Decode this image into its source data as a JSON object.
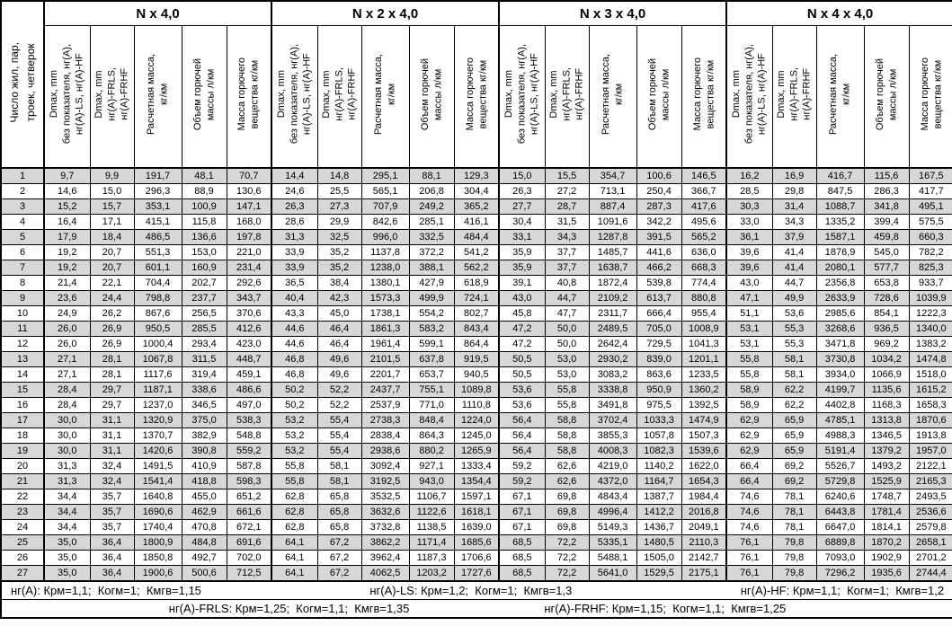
{
  "table": {
    "corner_header": "Число жил, пар,\nтроек, четверок",
    "groups": [
      {
        "title": "N x 4,0"
      },
      {
        "title": "N x 2 x 4,0"
      },
      {
        "title": "N x 3 x 4,0"
      },
      {
        "title": "N x 4 x 4,0"
      }
    ],
    "subheaders": [
      "Dmax, mm\nбез показателя, нг(А),\nнг(А)-LS, нг(А)-HF",
      "Dmax, mm\nнг(А)-FRLS,\nнг(А)-FRHF",
      "Расчетная масса,\nкг/км",
      "Объем горючей\nмассы л/км",
      "Масса горючего\nвещества кг/км"
    ],
    "rows": [
      {
        "n": "1",
        "cells": [
          "9,7",
          "9,9",
          "191,7",
          "48,1",
          "70,7",
          "14,4",
          "14,8",
          "295,1",
          "88,1",
          "129,3",
          "15,0",
          "15,5",
          "354,7",
          "100,6",
          "146,5",
          "16,2",
          "16,9",
          "416,7",
          "115,6",
          "167,5"
        ]
      },
      {
        "n": "2",
        "cells": [
          "14,6",
          "15,0",
          "296,3",
          "88,9",
          "130,6",
          "24,6",
          "25,5",
          "565,1",
          "206,8",
          "304,4",
          "26,3",
          "27,2",
          "713,1",
          "250,4",
          "366,7",
          "28,5",
          "29,8",
          "847,5",
          "286,3",
          "417,7"
        ]
      },
      {
        "n": "3",
        "cells": [
          "15,2",
          "15,7",
          "353,1",
          "100,9",
          "147,1",
          "26,3",
          "27,3",
          "707,9",
          "249,2",
          "365,2",
          "27,7",
          "28,7",
          "887,4",
          "287,3",
          "417,6",
          "30,3",
          "31,4",
          "1088,7",
          "341,8",
          "495,1"
        ]
      },
      {
        "n": "4",
        "cells": [
          "16,4",
          "17,1",
          "415,1",
          "115,8",
          "168,0",
          "28,6",
          "29,9",
          "842,6",
          "285,1",
          "416,1",
          "30,4",
          "31,5",
          "1091,6",
          "342,2",
          "495,6",
          "33,0",
          "34,3",
          "1335,2",
          "399,4",
          "575,5"
        ]
      },
      {
        "n": "5",
        "cells": [
          "17,9",
          "18,4",
          "486,5",
          "136,6",
          "197,8",
          "31,3",
          "32,5",
          "996,0",
          "332,5",
          "484,4",
          "33,1",
          "34,3",
          "1287,8",
          "391,5",
          "565,2",
          "36,1",
          "37,9",
          "1587,1",
          "459,8",
          "660,3"
        ]
      },
      {
        "n": "6",
        "cells": [
          "19,2",
          "20,7",
          "551,3",
          "153,0",
          "221,0",
          "33,9",
          "35,2",
          "1137,8",
          "372,2",
          "541,2",
          "35,9",
          "37,7",
          "1485,7",
          "441,6",
          "636,0",
          "39,6",
          "41,4",
          "1876,9",
          "545,0",
          "782,2"
        ]
      },
      {
        "n": "7",
        "cells": [
          "19,2",
          "20,7",
          "601,1",
          "160,9",
          "231,4",
          "33,9",
          "35,2",
          "1238,0",
          "388,1",
          "562,2",
          "35,9",
          "37,7",
          "1638,7",
          "466,2",
          "668,3",
          "39,6",
          "41,4",
          "2080,1",
          "577,7",
          "825,3"
        ]
      },
      {
        "n": "8",
        "cells": [
          "21,4",
          "22,1",
          "704,4",
          "202,7",
          "292,6",
          "36,5",
          "38,4",
          "1380,1",
          "427,9",
          "618,9",
          "39,1",
          "40,8",
          "1872,4",
          "539,8",
          "774,4",
          "43,0",
          "44,7",
          "2356,8",
          "653,8",
          "933,7"
        ]
      },
      {
        "n": "9",
        "cells": [
          "23,6",
          "24,4",
          "798,8",
          "237,7",
          "343,7",
          "40,4",
          "42,3",
          "1573,3",
          "499,9",
          "724,1",
          "43,0",
          "44,7",
          "2109,2",
          "613,7",
          "880,8",
          "47,1",
          "49,9",
          "2633,9",
          "728,6",
          "1039,9"
        ]
      },
      {
        "n": "10",
        "cells": [
          "24,9",
          "26,2",
          "867,6",
          "256,5",
          "370,6",
          "43,3",
          "45,0",
          "1738,1",
          "554,2",
          "802,7",
          "45,8",
          "47,7",
          "2311,7",
          "666,4",
          "955,4",
          "51,1",
          "53,6",
          "2985,6",
          "854,1",
          "1222,3"
        ]
      },
      {
        "n": "11",
        "cells": [
          "26,0",
          "26,9",
          "950,5",
          "285,5",
          "412,6",
          "44,6",
          "46,4",
          "1861,3",
          "583,2",
          "843,4",
          "47,2",
          "50,0",
          "2489,5",
          "705,0",
          "1008,9",
          "53,1",
          "55,3",
          "3268,6",
          "936,5",
          "1340,0"
        ]
      },
      {
        "n": "12",
        "cells": [
          "26,0",
          "26,9",
          "1000,4",
          "293,4",
          "423,0",
          "44,6",
          "46,4",
          "1961,4",
          "599,1",
          "864,4",
          "47,2",
          "50,0",
          "2642,4",
          "729,5",
          "1041,3",
          "53,1",
          "55,3",
          "3471,8",
          "969,2",
          "1383,2"
        ]
      },
      {
        "n": "13",
        "cells": [
          "27,1",
          "28,1",
          "1067,8",
          "311,5",
          "448,7",
          "46,8",
          "49,6",
          "2101,5",
          "637,8",
          "919,5",
          "50,5",
          "53,0",
          "2930,2",
          "839,0",
          "1201,1",
          "55,8",
          "58,1",
          "3730,8",
          "1034,2",
          "1474,8"
        ]
      },
      {
        "n": "14",
        "cells": [
          "27,1",
          "28,1",
          "1117,6",
          "319,4",
          "459,1",
          "46,8",
          "49,6",
          "2201,7",
          "653,7",
          "940,5",
          "50,5",
          "53,0",
          "3083,2",
          "863,6",
          "1233,5",
          "55,8",
          "58,1",
          "3934,0",
          "1066,9",
          "1518,0"
        ]
      },
      {
        "n": "15",
        "cells": [
          "28,4",
          "29,7",
          "1187,1",
          "338,6",
          "486,6",
          "50,2",
          "52,2",
          "2437,7",
          "755,1",
          "1089,8",
          "53,6",
          "55,8",
          "3338,8",
          "950,9",
          "1360,2",
          "58,9",
          "62,2",
          "4199,7",
          "1135,6",
          "1615,2"
        ]
      },
      {
        "n": "16",
        "cells": [
          "28,4",
          "29,7",
          "1237,0",
          "346,5",
          "497,0",
          "50,2",
          "52,2",
          "2537,9",
          "771,0",
          "1110,8",
          "53,6",
          "55,8",
          "3491,8",
          "975,5",
          "1392,5",
          "58,9",
          "62,2",
          "4402,8",
          "1168,3",
          "1658,3"
        ]
      },
      {
        "n": "17",
        "cells": [
          "30,0",
          "31,1",
          "1320,9",
          "375,0",
          "538,3",
          "53,2",
          "55,4",
          "2738,3",
          "848,4",
          "1224,0",
          "56,4",
          "58,8",
          "3702,4",
          "1033,3",
          "1474,9",
          "62,9",
          "65,9",
          "4785,1",
          "1313,8",
          "1870,6"
        ]
      },
      {
        "n": "18",
        "cells": [
          "30,0",
          "31,1",
          "1370,7",
          "382,9",
          "548,8",
          "53,2",
          "55,4",
          "2838,4",
          "864,3",
          "1245,0",
          "56,4",
          "58,8",
          "3855,3",
          "1057,8",
          "1507,3",
          "62,9",
          "65,9",
          "4988,3",
          "1346,5",
          "1913,8"
        ]
      },
      {
        "n": "19",
        "cells": [
          "30,0",
          "31,1",
          "1420,6",
          "390,8",
          "559,2",
          "53,2",
          "55,4",
          "2938,6",
          "880,2",
          "1265,9",
          "56,4",
          "58,8",
          "4008,3",
          "1082,3",
          "1539,6",
          "62,9",
          "65,9",
          "5191,4",
          "1379,2",
          "1957,0"
        ]
      },
      {
        "n": "20",
        "cells": [
          "31,3",
          "32,4",
          "1491,5",
          "410,9",
          "587,8",
          "55,8",
          "58,1",
          "3092,4",
          "927,1",
          "1333,4",
          "59,2",
          "62,6",
          "4219,0",
          "1140,2",
          "1622,0",
          "66,4",
          "69,2",
          "5526,7",
          "1493,2",
          "2122,1"
        ]
      },
      {
        "n": "21",
        "cells": [
          "31,3",
          "32,4",
          "1541,4",
          "418,8",
          "598,3",
          "55,8",
          "58,1",
          "3192,5",
          "943,0",
          "1354,4",
          "59,2",
          "62,6",
          "4372,0",
          "1164,7",
          "1654,3",
          "66,4",
          "69,2",
          "5729,8",
          "1525,9",
          "2165,3"
        ]
      },
      {
        "n": "22",
        "cells": [
          "34,4",
          "35,7",
          "1640,8",
          "455,0",
          "651,2",
          "62,8",
          "65,8",
          "3532,5",
          "1106,7",
          "1597,1",
          "67,1",
          "69,8",
          "4843,4",
          "1387,7",
          "1984,4",
          "74,6",
          "78,1",
          "6240,6",
          "1748,7",
          "2493,5"
        ]
      },
      {
        "n": "23",
        "cells": [
          "34,4",
          "35,7",
          "1690,6",
          "462,9",
          "661,6",
          "62,8",
          "65,8",
          "3632,6",
          "1122,6",
          "1618,1",
          "67,1",
          "69,8",
          "4996,4",
          "1412,2",
          "2016,8",
          "74,6",
          "78,1",
          "6443,8",
          "1781,4",
          "2536,6"
        ]
      },
      {
        "n": "24",
        "cells": [
          "34,4",
          "35,7",
          "1740,4",
          "470,8",
          "672,1",
          "62,8",
          "65,8",
          "3732,8",
          "1138,5",
          "1639,0",
          "67,1",
          "69,8",
          "5149,3",
          "1436,7",
          "2049,1",
          "74,6",
          "78,1",
          "6647,0",
          "1814,1",
          "2579,8"
        ]
      },
      {
        "n": "25",
        "cells": [
          "35,0",
          "36,4",
          "1800,9",
          "484,8",
          "691,6",
          "64,1",
          "67,2",
          "3862,2",
          "1171,4",
          "1685,6",
          "68,5",
          "72,2",
          "5335,1",
          "1480,5",
          "2110,3",
          "76,1",
          "79,8",
          "6889,8",
          "1870,2",
          "2658,1"
        ]
      },
      {
        "n": "26",
        "cells": [
          "35,0",
          "36,4",
          "1850,8",
          "492,7",
          "702,0",
          "64,1",
          "67,2",
          "3962,4",
          "1187,3",
          "1706,6",
          "68,5",
          "72,2",
          "5488,1",
          "1505,0",
          "2142,7",
          "76,1",
          "79,8",
          "7093,0",
          "1902,9",
          "2701,2"
        ]
      },
      {
        "n": "27",
        "cells": [
          "35,0",
          "36,4",
          "1900,6",
          "500,6",
          "712,5",
          "64,1",
          "67,2",
          "4062,5",
          "1203,2",
          "1727,6",
          "68,5",
          "72,2",
          "5641,0",
          "1529,5",
          "2175,1",
          "76,1",
          "79,8",
          "7296,2",
          "1935,6",
          "2744,4"
        ]
      }
    ]
  },
  "footer": {
    "line1": [
      "нг(А): Крм=1,1;  Когм=1;  Кмгв=1,15",
      "нг(А)-LS: Крм=1,2;  Когм=1;  Кмгв=1,3",
      "нг(А)-HF: Крм=1,1;  Когм=1;  Кмгв=1,2"
    ],
    "line2": [
      "нг(А)-FRLS: Крм=1,25;  Когм=1,1;  Кмгв=1,35",
      "нг(А)-FRHF: Крм=1,15;  Когм=1,1;  Кмгв=1,25"
    ]
  },
  "colors": {
    "stripe_gray": "#d7d7d7",
    "border": "#000000",
    "background": "#ffffff"
  }
}
